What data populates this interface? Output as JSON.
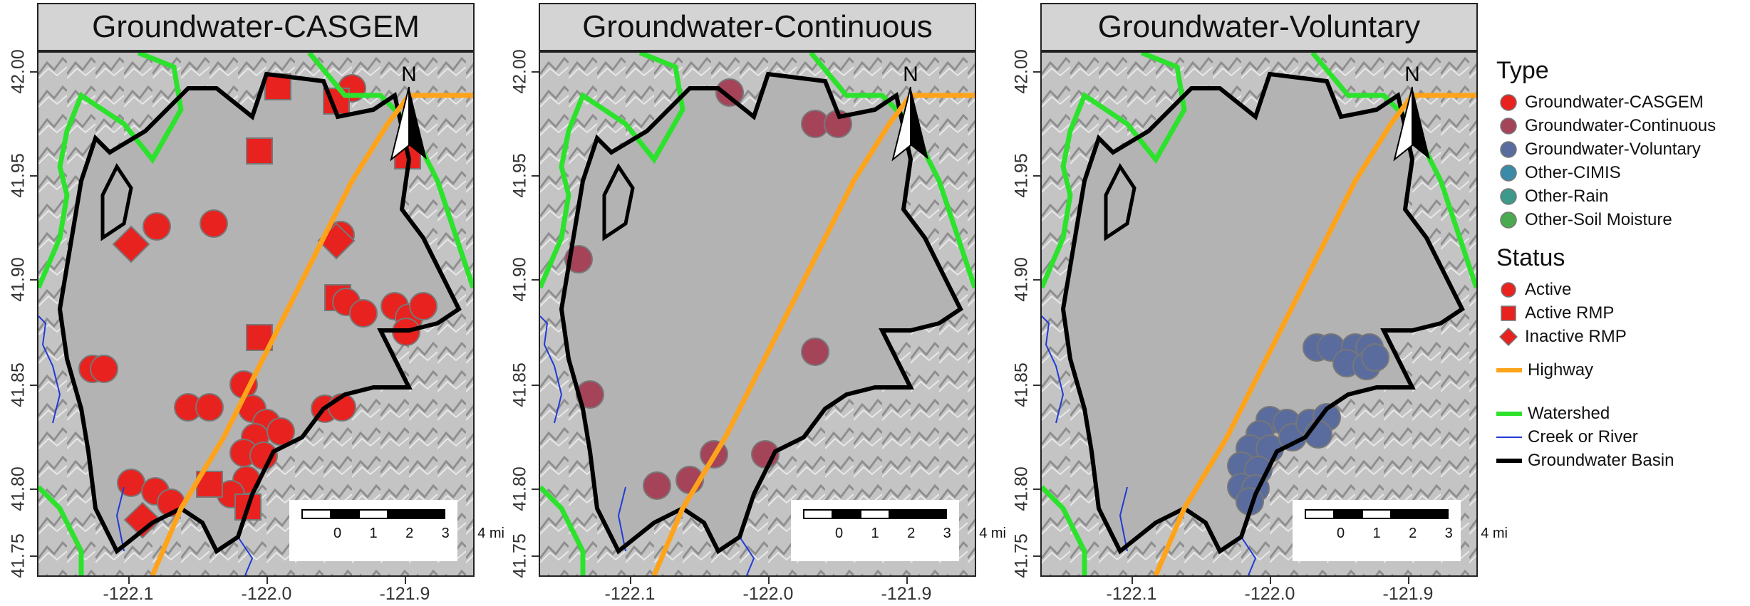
{
  "panels": [
    {
      "title": "Groundwater-CASGEM",
      "point_color": "#e8221f"
    },
    {
      "title": "Groundwater-Continuous",
      "point_color": "#a54459"
    },
    {
      "title": "Groundwater-Voluntary",
      "point_color": "#5a6c9e"
    }
  ],
  "axes": {
    "lat_ticks": [
      "42.00",
      "41.95",
      "41.90",
      "41.85",
      "41.80",
      "41.75"
    ],
    "lon_ticks": [
      "-122.1",
      "-122.0",
      "-121.9"
    ]
  },
  "north_arrow_label": "N",
  "scale_bar": {
    "labels": [
      "0",
      "1",
      "2",
      "3",
      "4 mi"
    ]
  },
  "legend": {
    "type_title": "Type",
    "types": [
      {
        "label": "Groundwater-CASGEM",
        "color": "#e8221f"
      },
      {
        "label": "Groundwater-Continuous",
        "color": "#a54459"
      },
      {
        "label": "Groundwater-Voluntary",
        "color": "#5a6c9e"
      },
      {
        "label": "Other-CIMIS",
        "color": "#3b8ba8"
      },
      {
        "label": "Other-Rain",
        "color": "#3d9a8a"
      },
      {
        "label": "Other-Soil Moisture",
        "color": "#4aaa4f"
      }
    ],
    "status_title": "Status",
    "statuses": [
      {
        "label": "Active",
        "shape": "circle"
      },
      {
        "label": "Active RMP",
        "shape": "square"
      },
      {
        "label": "Inactive RMP",
        "shape": "diamond"
      }
    ],
    "lines": [
      {
        "label": "Highway",
        "color": "#ffa31a"
      },
      {
        "label": "Watershed",
        "color": "#2de22d"
      },
      {
        "label": "Creek or River",
        "color": "#1f3bd6"
      },
      {
        "label": "Groundwater Basin",
        "color": "#000000"
      }
    ]
  }
}
